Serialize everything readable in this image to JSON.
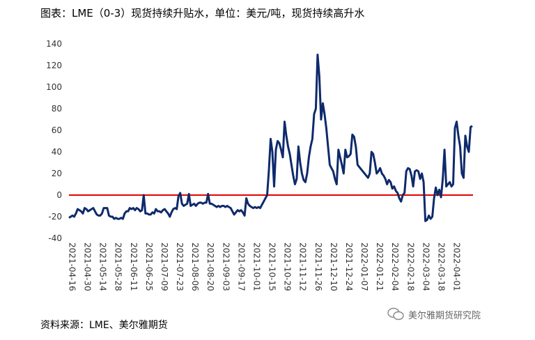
{
  "title": "图表：LME（0-3）现货持续升贴水，单位：美元/吨，现货持续高升水",
  "source": "资料来源：LME、美尔雅期货",
  "watermark": "美尔雅期货研究院",
  "chart_data": {
    "type": "line",
    "series_color": "#0e2a6b",
    "zero_line_color": "#e60000",
    "ylim": [
      -40,
      140
    ],
    "yticks": [
      -40,
      -20,
      0,
      20,
      40,
      60,
      80,
      100,
      120,
      140
    ],
    "x_tick_labels": [
      "2021-04-16",
      "2021-04-30",
      "2021-05-14",
      "2021-05-28",
      "2021-06-11",
      "2021-06-25",
      "2021-07-09",
      "2021-07-23",
      "2021-08-06",
      "2021-08-20",
      "2021-09-03",
      "2021-09-17",
      "2021-10-01",
      "2021-10-15",
      "2021-10-29",
      "2021-11-12",
      "2021-11-26",
      "2021-12-10",
      "2021-12-24",
      "2022-01-07",
      "2022-01-21",
      "2022-02-04",
      "2022-02-18",
      "2022-03-04",
      "2022-03-18",
      "2022-04-01"
    ],
    "values": [
      -21,
      -20,
      -19,
      -20,
      -17,
      -13,
      -14,
      -15,
      -17,
      -12,
      -13,
      -15,
      -14,
      -13,
      -12,
      -15,
      -18,
      -19,
      -19,
      -17,
      -12,
      -12,
      -12,
      -19,
      -20,
      -20,
      -22,
      -21,
      -22,
      -22,
      -21,
      -22,
      -17,
      -15,
      -15,
      -12,
      -13,
      -12,
      -14,
      -12,
      -13,
      -15,
      -14,
      0,
      -17,
      -17,
      -18,
      -18,
      -16,
      -17,
      -13,
      -15,
      -15,
      -16,
      -14,
      -13,
      -15,
      -17,
      -20,
      -16,
      -13,
      -12,
      -13,
      -1,
      2,
      -8,
      -10,
      -9,
      -8,
      1,
      -10,
      -9,
      -8,
      -10,
      -8,
      -7,
      -7,
      -8,
      -7,
      -7,
      1,
      -8,
      -8,
      -9,
      -10,
      -11,
      -10,
      -11,
      -10,
      -10,
      -11,
      -10,
      -11,
      -12,
      -15,
      -18,
      -16,
      -14,
      -15,
      -14,
      -16,
      -19,
      -3,
      -8,
      -10,
      -11,
      -12,
      -11,
      -12,
      -11,
      -12,
      -9,
      -6,
      -3,
      0,
      23,
      52,
      40,
      8,
      42,
      50,
      48,
      42,
      35,
      68,
      55,
      45,
      38,
      28,
      18,
      10,
      15,
      45,
      30,
      20,
      14,
      12,
      20,
      35,
      45,
      52,
      75,
      80,
      130,
      110,
      70,
      85,
      75,
      62,
      45,
      28,
      25,
      22,
      15,
      10,
      42,
      35,
      28,
      20,
      42,
      35,
      36,
      38,
      56,
      54,
      45,
      28,
      26,
      24,
      22,
      20,
      18,
      16,
      20,
      40,
      38,
      30,
      20,
      22,
      25,
      20,
      18,
      15,
      10,
      14,
      12,
      6,
      8,
      4,
      2,
      -3,
      -6,
      0,
      2,
      22,
      25,
      24,
      18,
      8,
      22,
      23,
      22,
      15,
      20,
      12,
      -24,
      -23,
      -19,
      -22,
      -20,
      -3,
      7,
      0,
      5,
      -2,
      15,
      42,
      8,
      10,
      12,
      8,
      10,
      62,
      68,
      55,
      45,
      20,
      16,
      55,
      45,
      40,
      63,
      64
    ]
  }
}
